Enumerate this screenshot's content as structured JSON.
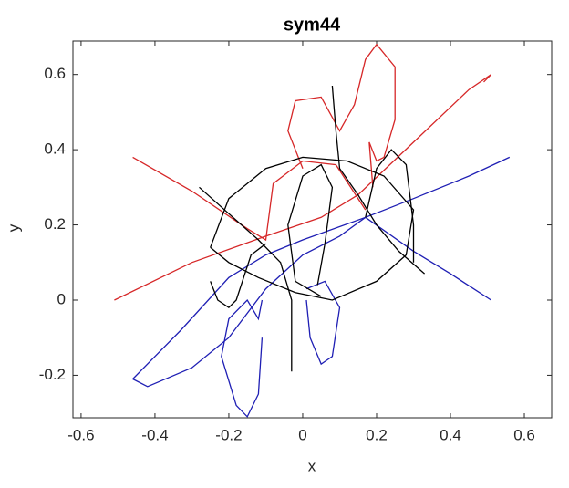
{
  "chart_data": {
    "type": "line",
    "title": "sym44",
    "x_label": "x",
    "y_label": "y",
    "xlim": [
      -0.622,
      0.674
    ],
    "ylim": [
      -0.313,
      0.689
    ],
    "xticks": [
      -0.6,
      -0.4,
      -0.2,
      0,
      0.2,
      0.4,
      0.6
    ],
    "yticks": [
      -0.2,
      0,
      0.2,
      0.4,
      0.6
    ],
    "grid": false,
    "series": [
      {
        "color": "#d62728",
        "x": [
          -0.51,
          -0.3,
          -0.1,
          0.05,
          0.15,
          0.3,
          0.45,
          0.51,
          0.49
        ],
        "values": [
          0,
          0.1,
          0.17,
          0.22,
          0.28,
          0.42,
          0.56,
          0.6,
          0.58
        ]
      },
      {
        "color": "#d62728",
        "x": [
          -0.46,
          -0.3,
          -0.15,
          -0.1,
          -0.08,
          0,
          0.09,
          0.17
        ],
        "values": [
          0.38,
          0.29,
          0.19,
          0.16,
          0.31,
          0.37,
          0.36,
          0.24
        ]
      },
      {
        "color": "#d62728",
        "x": [
          0.0,
          -0.04,
          -0.02,
          0.05,
          0.1,
          0.14,
          0.17,
          0.2,
          0.25,
          0.25,
          0.22,
          0.2,
          0.18,
          0.19
        ],
        "values": [
          0.35,
          0.45,
          0.53,
          0.54,
          0.45,
          0.52,
          0.64,
          0.68,
          0.62,
          0.48,
          0.38,
          0.37,
          0.42,
          0.3
        ]
      },
      {
        "color": "#1f1fb4",
        "x": [
          -0.46,
          -0.42,
          -0.3,
          -0.2,
          -0.1,
          0,
          0.1,
          0.17,
          0.3,
          0.45,
          0.56
        ],
        "values": [
          -0.21,
          -0.23,
          -0.18,
          -0.1,
          0.03,
          0.12,
          0.17,
          0.22,
          0.27,
          0.33,
          0.38
        ]
      },
      {
        "color": "#1f1fb4",
        "x": [
          -0.46,
          -0.4,
          -0.33,
          -0.2,
          -0.1,
          0,
          0.17
        ],
        "values": [
          -0.21,
          -0.15,
          -0.08,
          0.06,
          0.12,
          0.16,
          0.22
        ]
      },
      {
        "color": "#1f1fb4",
        "x": [
          0.17,
          0.3,
          0.4,
          0.51
        ],
        "values": [
          0.22,
          0.13,
          0.07,
          0
        ]
      },
      {
        "color": "#1f1fb4",
        "x": [
          -0.11,
          -0.12,
          -0.15,
          -0.2,
          -0.22,
          -0.18,
          -0.15,
          -0.12,
          -0.11
        ],
        "values": [
          0.0,
          -0.05,
          0.0,
          -0.05,
          -0.15,
          -0.28,
          -0.31,
          -0.25,
          -0.1
        ]
      },
      {
        "color": "#1f1fb4",
        "x": [
          0.01,
          0.06,
          0.1,
          0.08,
          0.05,
          0.02,
          0.01
        ],
        "values": [
          0.03,
          0.05,
          -0.02,
          -0.15,
          -0.17,
          -0.1,
          0.0
        ]
      },
      {
        "color": "#000000",
        "x": [
          -0.25,
          -0.2,
          -0.1,
          0.0,
          0.12,
          0.22,
          0.3,
          0.28,
          0.2,
          0.08,
          -0.02,
          -0.12,
          -0.2,
          -0.25
        ],
        "values": [
          0.14,
          0.27,
          0.35,
          0.38,
          0.37,
          0.33,
          0.24,
          0.12,
          0.05,
          0.0,
          0.02,
          0.06,
          0.1,
          0.14
        ]
      },
      {
        "color": "#000000",
        "x": [
          0.08,
          0.09,
          0.1,
          0.15,
          0.2,
          0.26,
          0.33
        ],
        "values": [
          0.57,
          0.45,
          0.35,
          0.28,
          0.2,
          0.13,
          0.07
        ]
      },
      {
        "color": "#000000",
        "x": [
          -0.28,
          -0.2,
          -0.12,
          -0.06,
          -0.03,
          -0.03
        ],
        "values": [
          0.3,
          0.23,
          0.16,
          0.1,
          0.0,
          -0.19
        ]
      },
      {
        "color": "#000000",
        "x": [
          -0.1,
          -0.14,
          -0.18,
          -0.2,
          -0.23,
          -0.25
        ],
        "values": [
          0.15,
          0.12,
          0.0,
          -0.02,
          0.0,
          0.05
        ]
      },
      {
        "color": "#000000",
        "x": [
          0.05,
          -0.02,
          -0.04,
          0,
          0.05,
          0.08,
          0.06,
          0.04
        ],
        "values": [
          0.01,
          0.05,
          0.2,
          0.33,
          0.36,
          0.3,
          0.15,
          0.04
        ]
      },
      {
        "color": "#000000",
        "x": [
          0.17,
          0.2,
          0.24,
          0.28,
          0.3,
          0.3
        ],
        "values": [
          0.22,
          0.35,
          0.4,
          0.36,
          0.2,
          0.1
        ]
      }
    ]
  }
}
